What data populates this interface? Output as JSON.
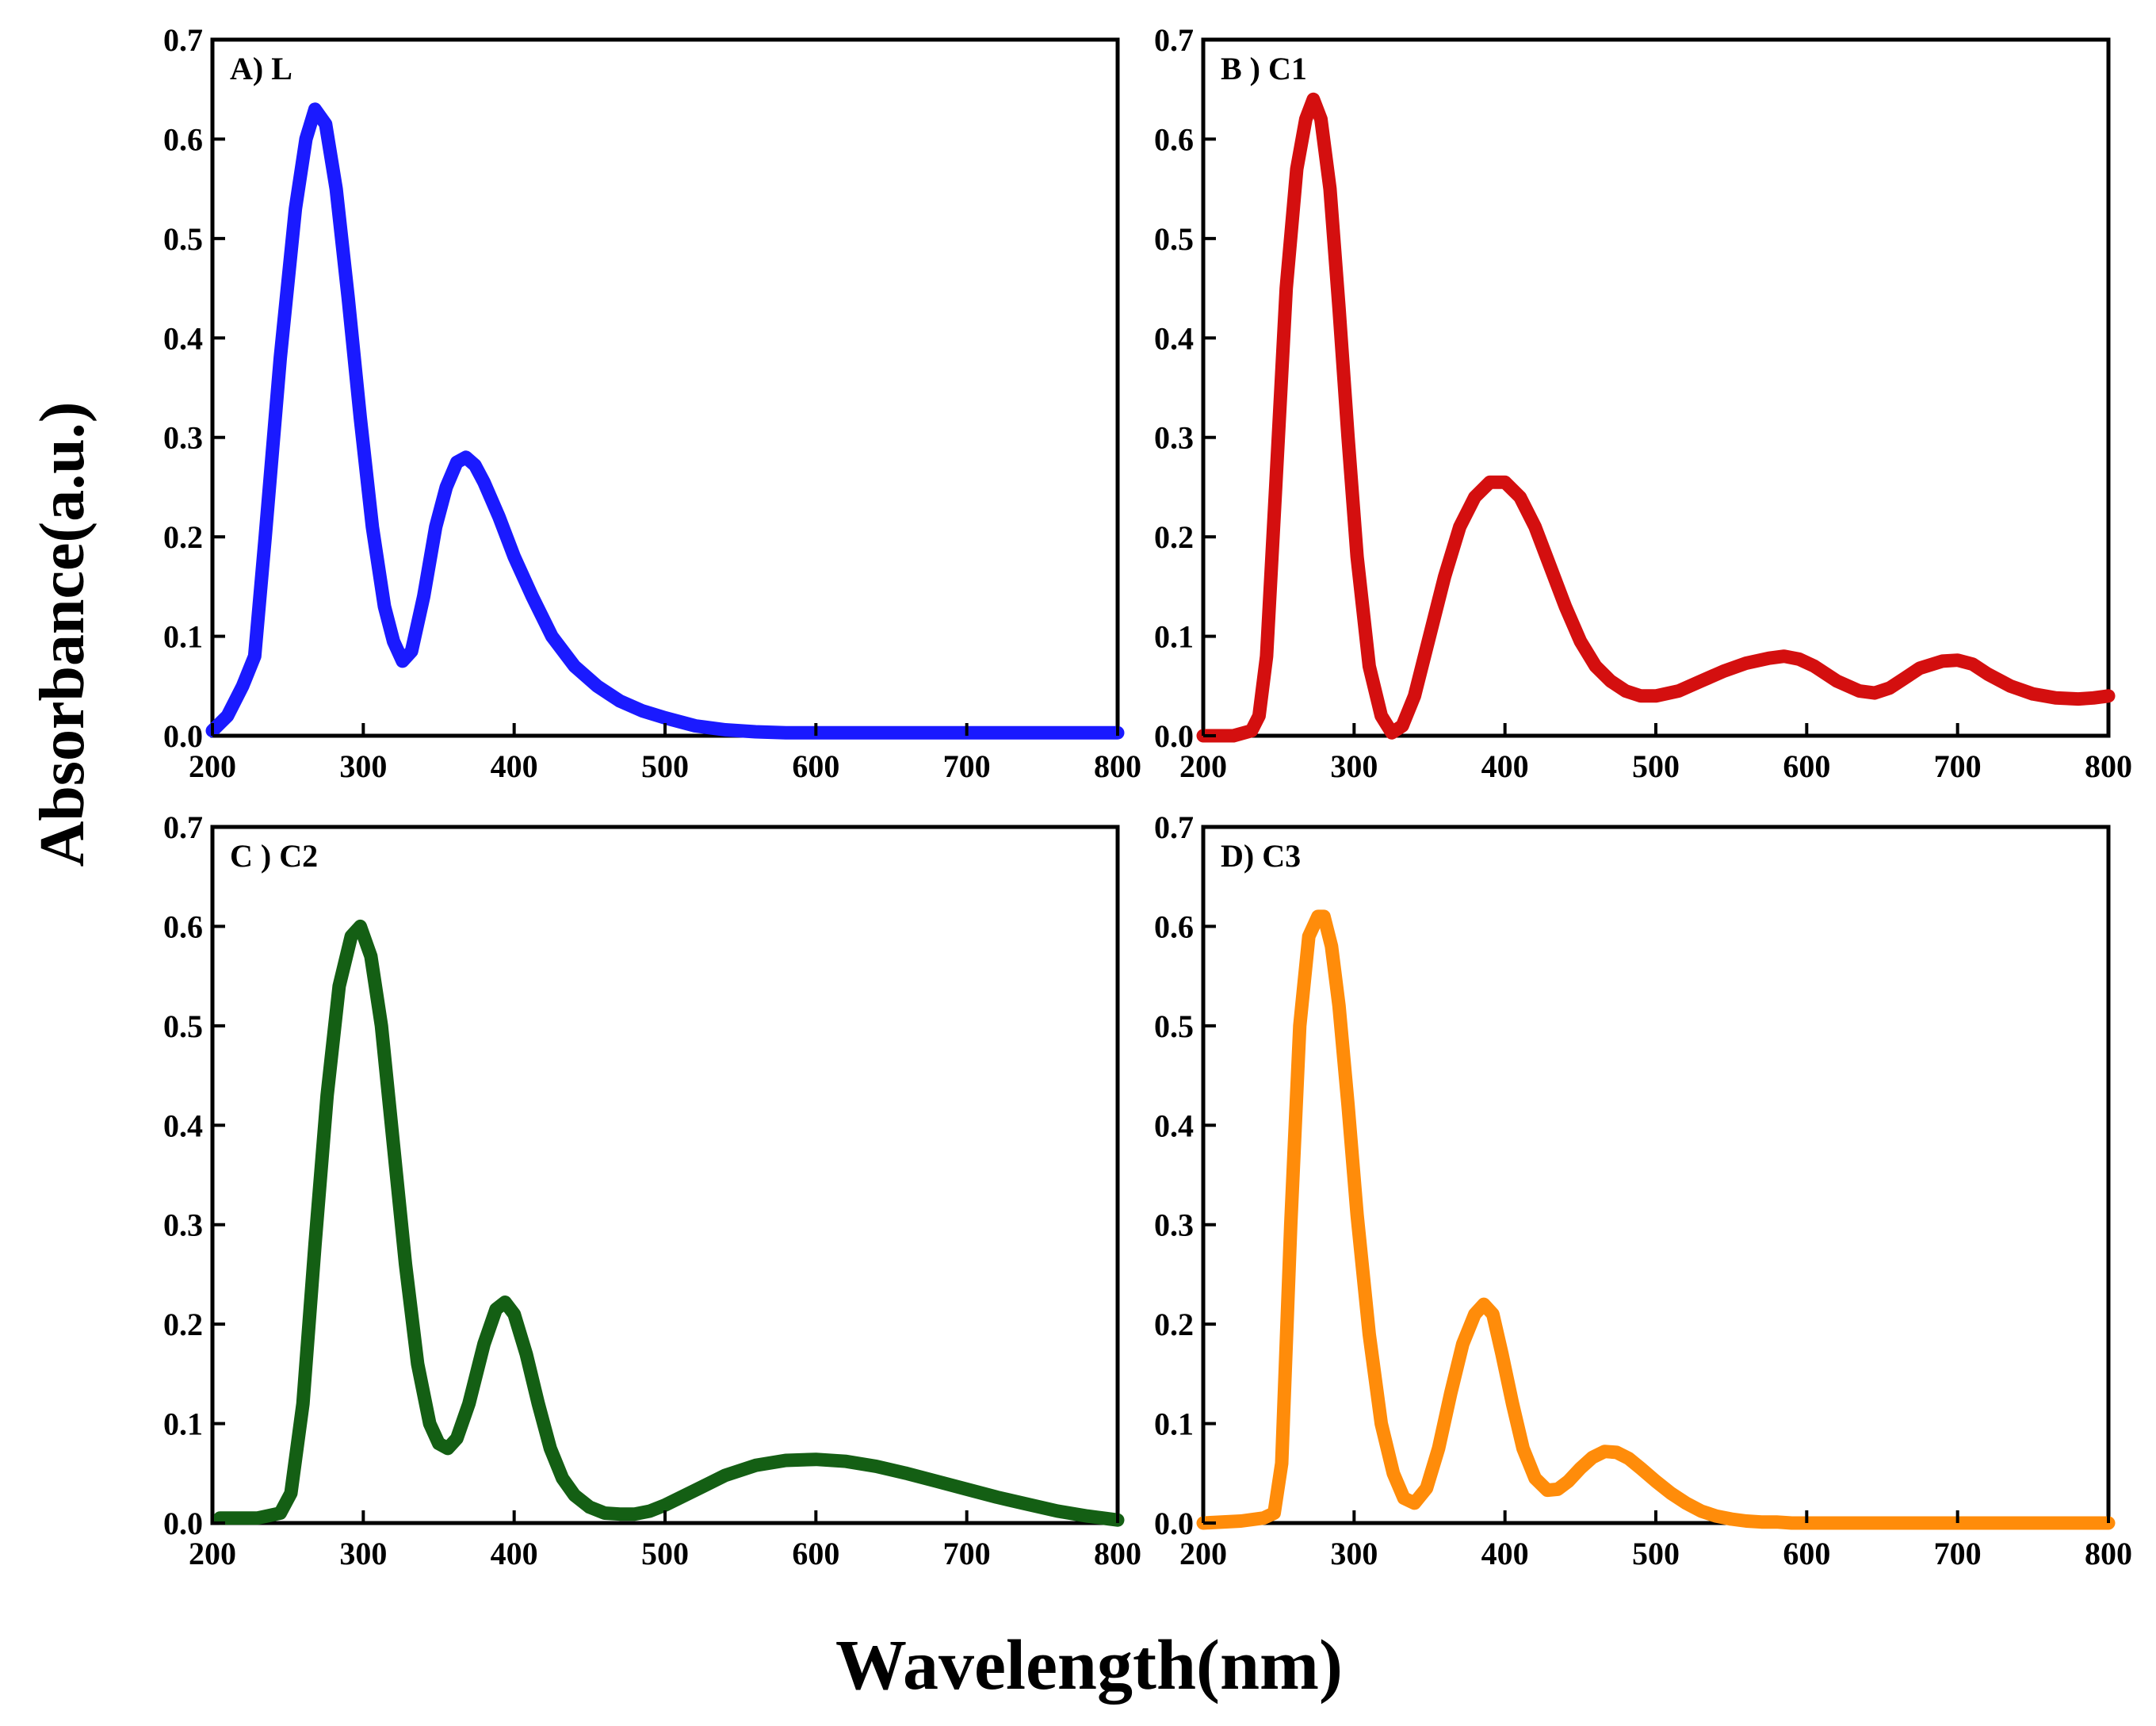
{
  "chart_data": {
    "y_title": "Absorbance(a.u.)",
    "x_title": "Wavelength(nm)",
    "panels": [
      {
        "type": "line",
        "label": "A) L",
        "color": "#1a1aff",
        "xlim": [
          200,
          800
        ],
        "ylim": [
          0,
          0.7
        ],
        "x_ticks": [
          "200",
          "300",
          "400",
          "500",
          "600",
          "700",
          "800"
        ],
        "y_ticks": [
          "0.0",
          "0.1",
          "0.2",
          "0.3",
          "0.4",
          "0.5",
          "0.6",
          "0.7"
        ],
        "series": {
          "x": [
            200,
            210,
            220,
            228,
            235,
            245,
            255,
            262,
            268,
            275,
            282,
            290,
            298,
            306,
            314,
            320,
            326,
            332,
            340,
            348,
            355,
            362,
            368,
            374,
            380,
            390,
            400,
            412,
            425,
            440,
            455,
            470,
            485,
            500,
            520,
            540,
            560,
            580,
            600,
            650,
            700,
            750,
            800
          ],
          "y": [
            0.005,
            0.02,
            0.05,
            0.08,
            0.2,
            0.38,
            0.53,
            0.6,
            0.63,
            0.615,
            0.55,
            0.44,
            0.32,
            0.21,
            0.13,
            0.095,
            0.075,
            0.085,
            0.14,
            0.21,
            0.25,
            0.275,
            0.28,
            0.272,
            0.255,
            0.22,
            0.18,
            0.14,
            0.1,
            0.07,
            0.05,
            0.035,
            0.025,
            0.018,
            0.01,
            0.006,
            0.004,
            0.003,
            0.003,
            0.003,
            0.003,
            0.003,
            0.003
          ]
        }
      },
      {
        "type": "line",
        "label": "B ) C1",
        "color": "#d40f0f",
        "xlim": [
          200,
          800
        ],
        "ylim": [
          0,
          0.7
        ],
        "x_ticks": [
          "200",
          "300",
          "400",
          "500",
          "600",
          "700",
          "800"
        ],
        "y_ticks": [
          "0.0",
          "0.1",
          "0.2",
          "0.3",
          "0.4",
          "0.5",
          "0.6",
          "0.7"
        ],
        "series": {
          "x": [
            200,
            220,
            232,
            237,
            242,
            248,
            255,
            262,
            268,
            273,
            278,
            284,
            290,
            296,
            302,
            310,
            318,
            325,
            332,
            340,
            350,
            360,
            370,
            380,
            390,
            400,
            410,
            420,
            430,
            440,
            450,
            460,
            470,
            480,
            490,
            500,
            515,
            530,
            545,
            560,
            575,
            585,
            595,
            605,
            620,
            635,
            645,
            655,
            665,
            675,
            690,
            700,
            710,
            720,
            735,
            750,
            765,
            780,
            790,
            800
          ],
          "y": [
            0,
            0,
            0.005,
            0.02,
            0.08,
            0.25,
            0.45,
            0.57,
            0.62,
            0.64,
            0.62,
            0.55,
            0.43,
            0.3,
            0.18,
            0.07,
            0.02,
            0.003,
            0.01,
            0.04,
            0.1,
            0.16,
            0.21,
            0.24,
            0.255,
            0.255,
            0.24,
            0.21,
            0.17,
            0.13,
            0.095,
            0.07,
            0.055,
            0.045,
            0.04,
            0.04,
            0.045,
            0.055,
            0.065,
            0.073,
            0.078,
            0.08,
            0.077,
            0.07,
            0.055,
            0.045,
            0.043,
            0.048,
            0.058,
            0.068,
            0.075,
            0.076,
            0.072,
            0.062,
            0.05,
            0.042,
            0.038,
            0.037,
            0.038,
            0.04
          ]
        }
      },
      {
        "type": "line",
        "label": "C ) C2",
        "color": "#145f14",
        "xlim": [
          200,
          800
        ],
        "ylim": [
          0,
          0.7
        ],
        "x_ticks": [
          "200",
          "300",
          "400",
          "500",
          "600",
          "700",
          "800"
        ],
        "y_ticks": [
          "0.0",
          "0.1",
          "0.2",
          "0.3",
          "0.4",
          "0.5",
          "0.6",
          "0.7"
        ],
        "series": {
          "x": [
            205,
            230,
            245,
            252,
            260,
            268,
            276,
            284,
            292,
            298,
            305,
            312,
            320,
            328,
            336,
            344,
            350,
            356,
            362,
            370,
            380,
            388,
            394,
            400,
            408,
            416,
            424,
            432,
            440,
            450,
            460,
            470,
            480,
            490,
            500,
            520,
            540,
            560,
            580,
            600,
            620,
            640,
            660,
            680,
            700,
            720,
            740,
            760,
            780,
            800
          ],
          "y": [
            0.005,
            0.005,
            0.01,
            0.03,
            0.12,
            0.28,
            0.43,
            0.54,
            0.59,
            0.6,
            0.57,
            0.5,
            0.38,
            0.26,
            0.16,
            0.1,
            0.08,
            0.075,
            0.085,
            0.12,
            0.18,
            0.215,
            0.222,
            0.21,
            0.17,
            0.12,
            0.075,
            0.045,
            0.028,
            0.016,
            0.01,
            0.009,
            0.009,
            0.012,
            0.018,
            0.033,
            0.048,
            0.058,
            0.063,
            0.064,
            0.062,
            0.057,
            0.05,
            0.042,
            0.034,
            0.026,
            0.019,
            0.012,
            0.007,
            0.003
          ]
        }
      },
      {
        "type": "line",
        "label": "D) C3",
        "color": "#ff8c0a",
        "xlim": [
          200,
          800
        ],
        "ylim": [
          0,
          0.7
        ],
        "x_ticks": [
          "200",
          "300",
          "400",
          "500",
          "600",
          "700",
          "800"
        ],
        "y_ticks": [
          "0.0",
          "0.1",
          "0.2",
          "0.3",
          "0.4",
          "0.5",
          "0.6",
          "0.7"
        ],
        "series": {
          "x": [
            200,
            225,
            240,
            247,
            252,
            258,
            264,
            270,
            276,
            280,
            285,
            290,
            296,
            302,
            310,
            318,
            326,
            333,
            340,
            348,
            356,
            364,
            372,
            380,
            386,
            392,
            398,
            405,
            412,
            420,
            428,
            435,
            442,
            450,
            458,
            466,
            474,
            482,
            490,
            500,
            510,
            520,
            530,
            540,
            550,
            560,
            570,
            580,
            590,
            600,
            650,
            700,
            750,
            800
          ],
          "y": [
            0,
            0.002,
            0.005,
            0.01,
            0.06,
            0.3,
            0.5,
            0.59,
            0.61,
            0.61,
            0.58,
            0.52,
            0.42,
            0.31,
            0.19,
            0.1,
            0.05,
            0.025,
            0.02,
            0.035,
            0.075,
            0.13,
            0.18,
            0.21,
            0.22,
            0.21,
            0.17,
            0.12,
            0.075,
            0.045,
            0.033,
            0.034,
            0.042,
            0.055,
            0.066,
            0.072,
            0.071,
            0.065,
            0.055,
            0.042,
            0.03,
            0.02,
            0.012,
            0.007,
            0.004,
            0.002,
            0.001,
            0.001,
            0,
            0,
            0,
            0,
            0,
            0
          ]
        }
      }
    ]
  }
}
